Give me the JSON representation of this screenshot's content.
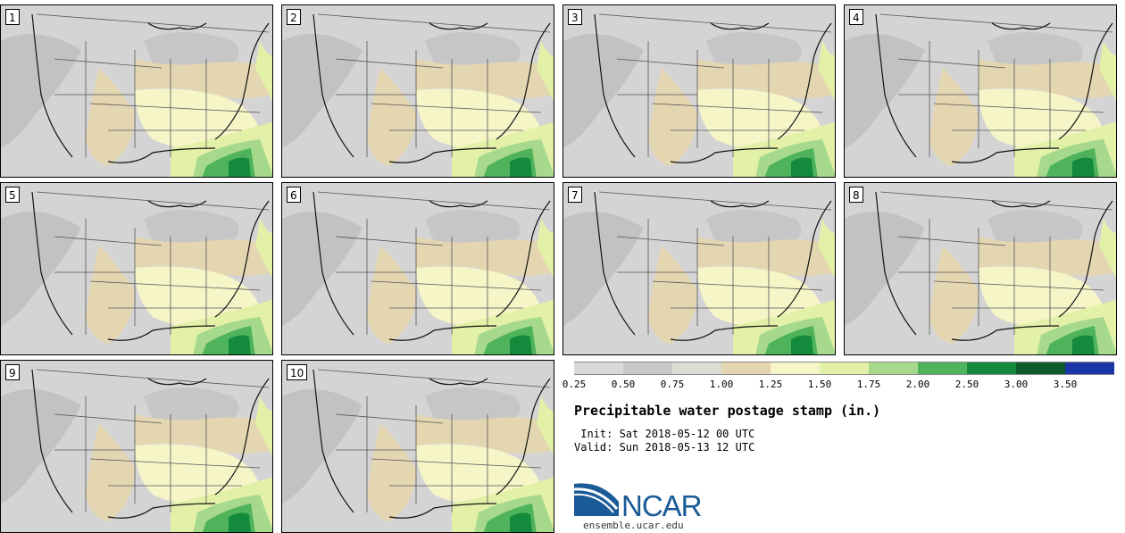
{
  "panels": [
    {
      "label": "1"
    },
    {
      "label": "2"
    },
    {
      "label": "3"
    },
    {
      "label": "4"
    },
    {
      "label": "5"
    },
    {
      "label": "6"
    },
    {
      "label": "7"
    },
    {
      "label": "8"
    },
    {
      "label": "9"
    },
    {
      "label": "10"
    }
  ],
  "legend": {
    "ticks": [
      "0.25",
      "0.50",
      "0.75",
      "1.00",
      "1.25",
      "1.50",
      "1.75",
      "2.00",
      "2.50",
      "3.00",
      "3.50"
    ],
    "colors": [
      "#d9d9d9",
      "#c8c8c8",
      "#dcdcd2",
      "#e4d6b0",
      "#f6f5c8",
      "#e3f0a8",
      "#a7d98d",
      "#4fb35b",
      "#138a3c",
      "#0f5b2a",
      "#1a35a6"
    ]
  },
  "title": "Precipitable water postage stamp (in.)",
  "init": " Init: Sat 2018-05-12 00 UTC",
  "valid": "Valid: Sun 2018-05-13 12 UTC",
  "logo": {
    "text": "NCAR",
    "site": "ensemble.ucar.edu"
  }
}
